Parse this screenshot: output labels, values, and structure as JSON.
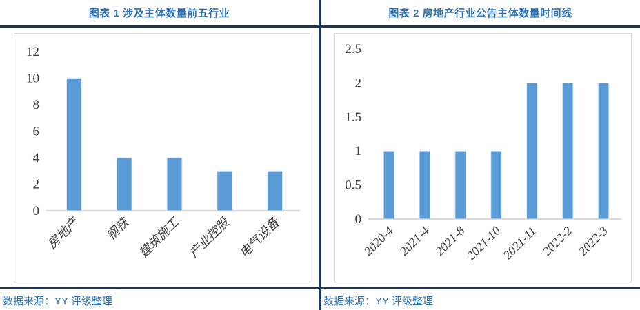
{
  "panels": [
    {
      "title": "图表 1 涉及主体数量前五行业",
      "source": "数据来源：YY 评级整理"
    },
    {
      "title": "图表 2 房地产行业公告主体数量时间线",
      "source": "数据来源：YY 评级整理"
    }
  ],
  "colors": {
    "bar_fill": "#5B9BD5",
    "bar_border": "#DCE9F7",
    "title_text": "#2E74B5",
    "rule_navy": "#17375E",
    "axis_line": "#D9D9D9",
    "tick_text": "#404040",
    "chart_border": "#D9D9D9"
  },
  "chart_data": [
    {
      "type": "bar",
      "title": "图表 1 涉及主体数量前五行业",
      "categories": [
        "房地产",
        "钢铁",
        "建筑施工",
        "产业控股",
        "电气设备"
      ],
      "values": [
        10,
        4,
        4,
        3,
        3
      ],
      "xlabel": "",
      "ylabel": "",
      "ylim": [
        0,
        12
      ],
      "ystep": 2,
      "grid": false,
      "legend_position": "none",
      "x_tick_rotation": -45
    },
    {
      "type": "bar",
      "title": "图表 2 房地产行业公告主体数量时间线",
      "categories": [
        "2020-4",
        "2021-4",
        "2021-8",
        "2021-10",
        "2021-11",
        "2022-2",
        "2022-3"
      ],
      "values": [
        1,
        1,
        1,
        1,
        2,
        2,
        2
      ],
      "xlabel": "",
      "ylabel": "",
      "ylim": [
        0,
        2.5
      ],
      "ystep": 0.5,
      "grid": false,
      "legend_position": "none",
      "x_tick_rotation": -45
    }
  ]
}
